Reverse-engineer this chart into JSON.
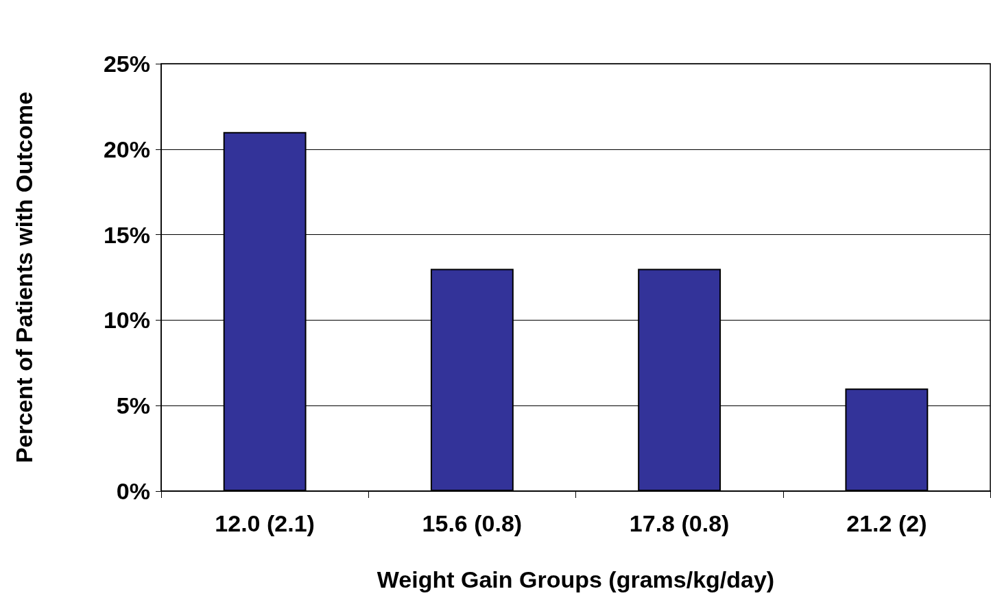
{
  "chart_data": {
    "type": "bar",
    "xlabel": "Weight Gain Groups (grams/kg/day)",
    "ylabel": "Percent of Patients with Outcome",
    "categories": [
      "12.0 (2.1)",
      "15.6 (0.8)",
      "17.8 (0.8)",
      "21.2 (2)"
    ],
    "values": [
      21,
      13,
      13,
      6
    ],
    "color": "#333399",
    "ylim": [
      0,
      25
    ],
    "yticks": [
      {
        "value": 0,
        "label": "0%"
      },
      {
        "value": 5,
        "label": "5%"
      },
      {
        "value": 10,
        "label": "10%"
      },
      {
        "value": 15,
        "label": "15%"
      },
      {
        "value": 20,
        "label": "20%"
      },
      {
        "value": 25,
        "label": "25%"
      }
    ],
    "grid": "y"
  }
}
